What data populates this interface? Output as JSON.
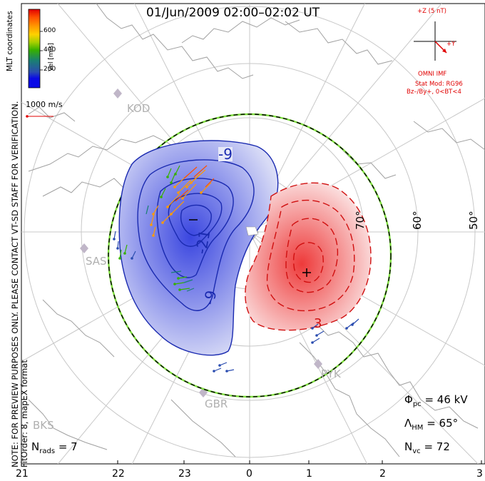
{
  "title": "01/Jun/2009 02:00–02:02 UT",
  "side_notes": {
    "preview_warning": "NOTE: FOR PREVIEW PURPOSES ONLY. PLEASE CONTACT VT-SD STAFF FOR VERIFICATION.",
    "fit_order": "FitOrder: 8, mapEX format",
    "mlt_coordinates": "MLT coordinates"
  },
  "velocity_scale": {
    "title": "Vel [m/s]",
    "ticks": [
      "600",
      "400",
      "200"
    ],
    "colors": [
      "#e00000",
      "#ff5000",
      "#ff9b00",
      "#ffd100",
      "#a8d000",
      "#36b000",
      "#1a8070",
      "#2a4cb0",
      "#0a0ae6"
    ],
    "reference_vector": "1000 m/s"
  },
  "imf": {
    "z_label": "+Z (5 nT)",
    "y_label": "+Y",
    "source": "OMNI IMF",
    "stat_mod": "Stat Mod: RG96",
    "conditions": "Bz–/By+, 0<BT<4"
  },
  "latitudes": [
    "70°",
    "60°",
    "50°"
  ],
  "contours": {
    "negative": [
      "-9",
      "-21",
      "-9"
    ],
    "positive": [
      "3"
    ]
  },
  "stations": [
    "KOD",
    "SAS",
    "PYK",
    "GBR",
    "BKS"
  ],
  "stats": {
    "n_rads_label": "N",
    "n_rads_sub": "rads",
    "n_rads_value": "= 7",
    "phi_label": "Φ",
    "phi_sub": "pc",
    "phi_value": "= 46 kV",
    "lambda_label": "Λ",
    "lambda_sub": "HM",
    "lambda_value": "= 65°",
    "nvc_label": "N",
    "nvc_sub": "vc",
    "nvc_value": "= 72"
  },
  "mlt_ticks": [
    "21",
    "22",
    "23",
    "0",
    "1",
    "2",
    "3"
  ],
  "colors": {
    "negative_cell": "#1a2ab0",
    "positive_cell": "#d01010",
    "grid": "#c8c8c8",
    "imf_text": "#e00000",
    "boundary_green": "#80e040"
  }
}
